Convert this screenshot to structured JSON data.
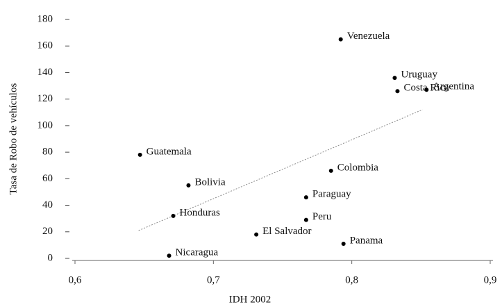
{
  "chart_data": {
    "type": "scatter",
    "xlabel": "IDH 2002",
    "ylabel": "Tasa de Robo de vehículos",
    "point_labels": [
      "Venezuela",
      "Uruguay",
      "Costa Rica",
      "Argentina",
      "Guatemala",
      "Colombia",
      "Bolivia",
      "Paraguay",
      "Honduras",
      "Peru",
      "El Salvador",
      "Panama",
      "Nicaragua"
    ],
    "x": [
      0.792,
      0.831,
      0.833,
      0.854,
      0.647,
      0.785,
      0.682,
      0.767,
      0.671,
      0.767,
      0.731,
      0.794,
      0.668
    ],
    "values": [
      165,
      136,
      126,
      127,
      78,
      66,
      55,
      46,
      32,
      29,
      18,
      11,
      2
    ],
    "color": "#000000",
    "trendline": {
      "x": [
        0.646,
        0.851
      ],
      "values": [
        21,
        112
      ]
    },
    "xlim": [
      0.6,
      0.9
    ],
    "xticks": [
      {
        "value": 0.6,
        "label": "0,6"
      },
      {
        "value": 0.7,
        "label": "0,7"
      },
      {
        "value": 0.8,
        "label": "0,8"
      },
      {
        "value": 0.9,
        "label": "0,9"
      }
    ],
    "ylim": [
      0,
      180
    ],
    "yticks": [
      0,
      20,
      40,
      60,
      80,
      100,
      120,
      140,
      160,
      180
    ]
  }
}
